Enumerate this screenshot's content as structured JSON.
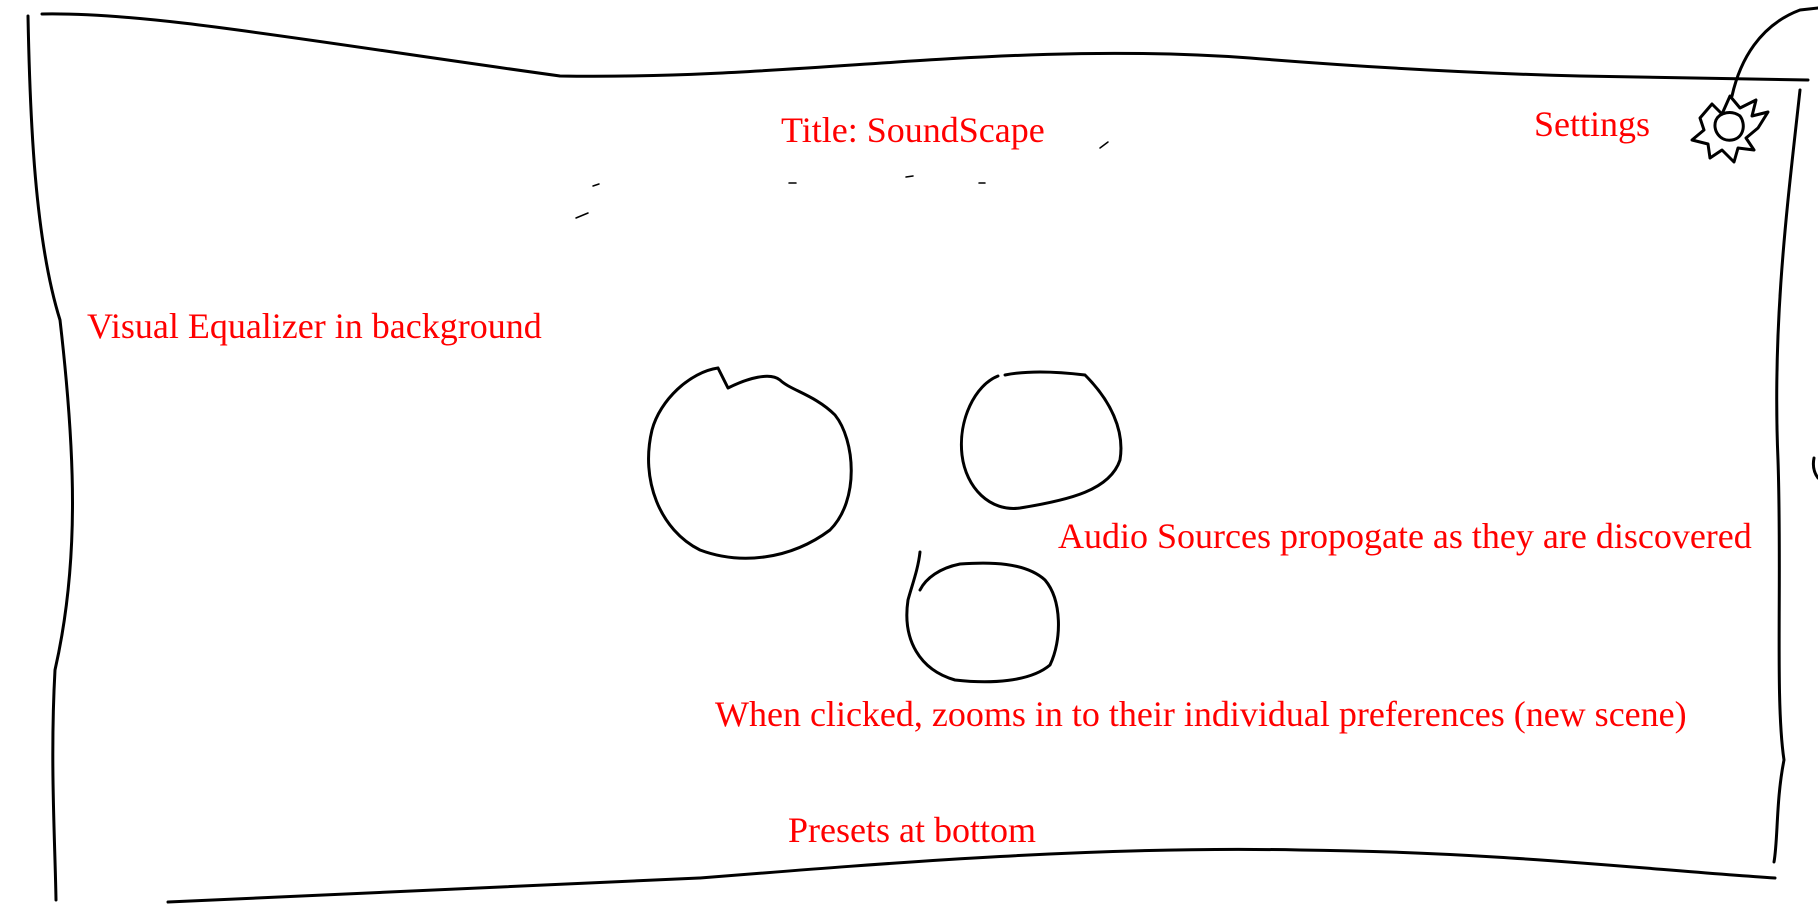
{
  "annotations": {
    "title": "Title: SoundScape",
    "settings": "Settings",
    "equalizer": "Visual Equalizer in background",
    "audio_sources": "Audio Sources propogate as they are discovered",
    "click_behavior": "When clicked, zooms in to their individual preferences (new scene)",
    "presets": "Presets at bottom"
  },
  "icons": {
    "settings": "gear-icon"
  },
  "audio_sources": [
    {
      "shape": "circle"
    },
    {
      "shape": "circle"
    },
    {
      "shape": "circle"
    }
  ],
  "colors": {
    "annotation": "#ff0000",
    "sketch": "#000000"
  }
}
